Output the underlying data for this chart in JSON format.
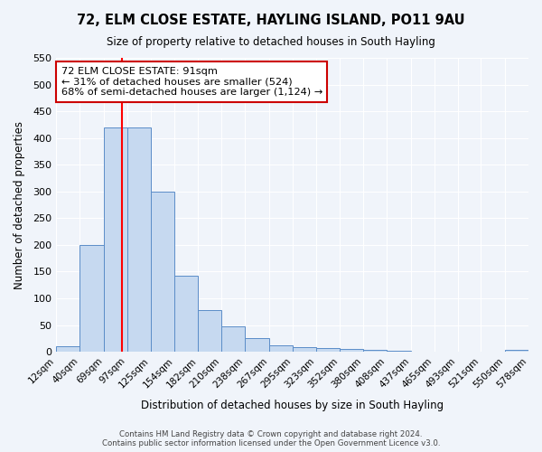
{
  "title": "72, ELM CLOSE ESTATE, HAYLING ISLAND, PO11 9AU",
  "subtitle": "Size of property relative to detached houses in South Hayling",
  "xlabel": "Distribution of detached houses by size in South Hayling",
  "ylabel": "Number of detached properties",
  "bar_color": "#c6d9f0",
  "bar_edge_color": "#5b8dc8",
  "bin_edges": [
    12,
    40,
    69,
    97,
    125,
    154,
    182,
    210,
    238,
    267,
    295,
    323,
    352,
    380,
    408,
    437,
    465,
    493,
    521,
    550,
    578
  ],
  "bin_labels": [
    "12sqm",
    "40sqm",
    "69sqm",
    "97sqm",
    "125sqm",
    "154sqm",
    "182sqm",
    "210sqm",
    "238sqm",
    "267sqm",
    "295sqm",
    "323sqm",
    "352sqm",
    "380sqm",
    "408sqm",
    "437sqm",
    "465sqm",
    "493sqm",
    "521sqm",
    "550sqm",
    "578sqm"
  ],
  "counts": [
    10,
    200,
    420,
    420,
    300,
    143,
    78,
    48,
    25,
    12,
    8,
    7,
    5,
    3,
    2,
    1,
    0,
    0,
    0,
    3
  ],
  "ylim": [
    0,
    550
  ],
  "yticks": [
    0,
    50,
    100,
    150,
    200,
    250,
    300,
    350,
    400,
    450,
    500,
    550
  ],
  "property_sqm": 91,
  "vline_x": 91,
  "annotation_title": "72 ELM CLOSE ESTATE: 91sqm",
  "annotation_line1": "← 31% of detached houses are smaller (524)",
  "annotation_line2": "68% of semi-detached houses are larger (1,124) →",
  "annotation_box_color": "#ffffff",
  "annotation_box_edge_color": "#cc0000",
  "footer1": "Contains HM Land Registry data © Crown copyright and database right 2024.",
  "footer2": "Contains public sector information licensed under the Open Government Licence v3.0.",
  "background_color": "#f0f4fa",
  "grid_color": "#ffffff"
}
